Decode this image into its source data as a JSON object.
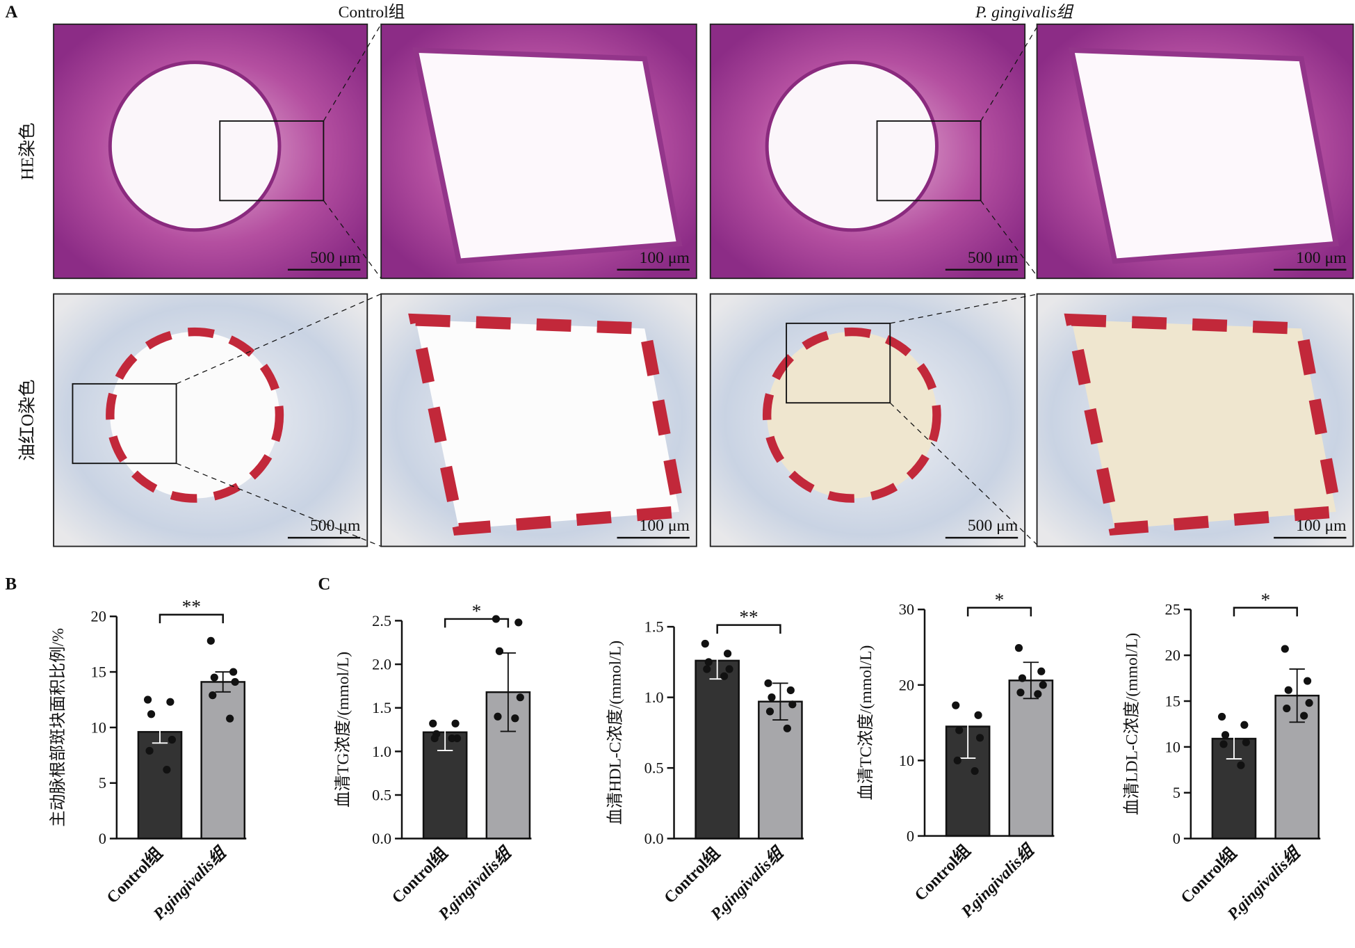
{
  "panel_a": {
    "label": "A",
    "columns": [
      "Control组",
      "P. gingivalis组"
    ],
    "rows": [
      "HE染色",
      "油红O染色"
    ],
    "scale_bars": [
      [
        "500 μm",
        "100 μm",
        "500 μm",
        "100 μm"
      ],
      [
        "500 μm",
        "100 μm",
        "500 μm",
        "100 μm"
      ]
    ]
  },
  "chart_data": [
    {
      "type": "bar",
      "panel_label": "B",
      "ylabel": "主动脉根部斑块面积比例/%",
      "categories": [
        "Control组",
        "P.gingivalis组"
      ],
      "values": [
        9.6,
        14.1
      ],
      "errors": [
        1.0,
        0.9
      ],
      "colors": [
        "#333333",
        "#a7a7aa"
      ],
      "points": [
        [
          12.5,
          12.3,
          11.2,
          8.9,
          7.9,
          6.2
        ],
        [
          17.8,
          15.0,
          14.5,
          14.1,
          12.9,
          10.8
        ]
      ],
      "significance": "**",
      "ylim": [
        0,
        20
      ],
      "yticks": [
        0,
        5,
        10,
        15,
        20
      ]
    },
    {
      "type": "bar",
      "panel_label": "C",
      "ylabel": "血清TG浓度/(mmol/L)",
      "categories": [
        "Control组",
        "P.gingivalis组"
      ],
      "values": [
        1.22,
        1.68
      ],
      "errors": [
        0.21,
        0.45
      ],
      "colors": [
        "#333333",
        "#a7a7aa"
      ],
      "points": [
        [
          1.32,
          1.32,
          1.2,
          1.15,
          1.15,
          1.15
        ],
        [
          2.52,
          2.48,
          2.15,
          1.62,
          1.4,
          1.38
        ]
      ],
      "significance": "*",
      "ylim": [
        0,
        2.5
      ],
      "yticks": [
        {
          "value": 0,
          "label": "0.0"
        },
        0.5,
        {
          "value": 1,
          "label": "1.0"
        },
        1.5,
        {
          "value": 2,
          "label": "2.0"
        },
        2.5
      ]
    },
    {
      "type": "bar",
      "ylabel": "血清HDL-C浓度/(mmol/L)",
      "categories": [
        "Control组",
        "P.gingivalis组"
      ],
      "values": [
        1.26,
        0.97
      ],
      "errors": [
        0.13,
        0.13
      ],
      "colors": [
        "#333333",
        "#a7a7aa"
      ],
      "points": [
        [
          1.38,
          1.31,
          1.25,
          1.2,
          1.2,
          1.15
        ],
        [
          1.1,
          1.05,
          1.0,
          0.95,
          0.9,
          0.78
        ]
      ],
      "significance": "**",
      "ylim": [
        0,
        1.5
      ],
      "yticks": [
        {
          "value": 0,
          "label": "0.0"
        },
        0.5,
        {
          "value": 1,
          "label": "1.0"
        },
        1.5
      ]
    },
    {
      "type": "bar",
      "ylabel": "血清TC浓度/(mmol/L)",
      "categories": [
        "Control组",
        "P.gingivalis组"
      ],
      "values": [
        14.5,
        20.6
      ],
      "errors": [
        4.2,
        2.4
      ],
      "colors": [
        "#333333",
        "#a7a7aa"
      ],
      "points": [
        [
          17.3,
          16,
          14,
          13,
          10,
          8.6
        ],
        [
          24.9,
          21.8,
          20.9,
          20,
          19,
          18.8
        ]
      ],
      "significance": "*",
      "ylim": [
        0,
        30
      ],
      "yticks": [
        0,
        10,
        20,
        30
      ]
    },
    {
      "type": "bar",
      "ylabel": "血清LDL-C浓度/(mmol/L)",
      "categories": [
        "Control组",
        "P.gingivalis组"
      ],
      "values": [
        10.9,
        15.6
      ],
      "errors": [
        2.2,
        2.9
      ],
      "colors": [
        "#333333",
        "#a7a7aa"
      ],
      "points": [
        [
          13.3,
          12.4,
          11.3,
          10.5,
          10.3,
          8.0
        ],
        [
          20.7,
          17.2,
          16.2,
          14.8,
          14.2,
          13.4
        ]
      ],
      "significance": "*",
      "ylim": [
        0,
        25
      ],
      "yticks": [
        0,
        5,
        10,
        15,
        20,
        25
      ]
    }
  ]
}
